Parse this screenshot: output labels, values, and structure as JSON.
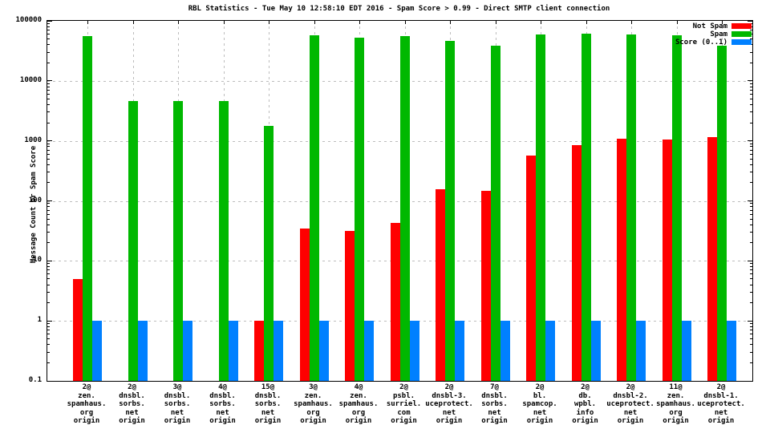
{
  "title": "RBL Statistics - Tue May 10 12:58:10 EDT 2016 - Spam Score > 0.99 - Direct SMTP client connection",
  "y_axis": {
    "label": "Message Count or Spam Score",
    "tick_labels": [
      "100000",
      "10000",
      "1000",
      "100",
      "10",
      "1",
      "0.1"
    ]
  },
  "legend": {
    "position": "top-right-inside",
    "entries": [
      {
        "label": "Not Spam",
        "color": "#ff0000"
      },
      {
        "label": "Spam",
        "color": "#00b800"
      },
      {
        "label": "Score (0..1)",
        "color": "#0080ff"
      }
    ]
  },
  "colors": {
    "not_spam": "#ff0000",
    "spam": "#00b800",
    "score": "#0080ff",
    "grid": "#bdbdbd",
    "border": "#000000",
    "background": "#ffffff"
  },
  "chart_data": {
    "type": "bar",
    "scale": "log",
    "ylim": [
      0.1,
      100000
    ],
    "grid": "on",
    "legend_position": "top-right-inside",
    "title": "RBL Statistics - Tue May 10 12:58:10 EDT 2016 - Spam Score > 0.99 - Direct SMTP client connection",
    "xlabel": "",
    "ylabel": "Message Count or Spam Score",
    "categories": [
      "2@ zen. spamhaus. org origin",
      "2@ dnsbl. sorbs. net origin",
      "3@ dnsbl. sorbs. net origin",
      "4@ dnsbl. sorbs. net origin",
      "15@ dnsbl. sorbs. net origin",
      "3@ zen. spamhaus. org origin",
      "4@ zen. spamhaus. org origin",
      "2@ psbl. surriel. com origin",
      "2@ dnsbl-3. uceprotect. net origin",
      "7@ dnsbl. sorbs. net origin",
      "2@ bl. spamcop. net origin",
      "2@ db. wpbl. info origin",
      "2@ dnsbl-2. uceprotect. net origin",
      "11@ zen. spamhaus. org origin",
      "2@ dnsbl-1. uceprotect. net origin"
    ],
    "category_lines": [
      [
        "2@",
        "zen.",
        "spamhaus.",
        "org",
        "origin"
      ],
      [
        "2@",
        "dnsbl.",
        "sorbs.",
        "net",
        "origin"
      ],
      [
        "3@",
        "dnsbl.",
        "sorbs.",
        "net",
        "origin"
      ],
      [
        "4@",
        "dnsbl.",
        "sorbs.",
        "net",
        "origin"
      ],
      [
        "15@",
        "dnsbl.",
        "sorbs.",
        "net",
        "origin"
      ],
      [
        "3@",
        "zen.",
        "spamhaus.",
        "org",
        "origin"
      ],
      [
        "4@",
        "zen.",
        "spamhaus.",
        "org",
        "origin"
      ],
      [
        "2@",
        "psbl.",
        "surriel.",
        "com",
        "origin"
      ],
      [
        "2@",
        "dnsbl-3.",
        "uceprotect.",
        "net",
        "origin"
      ],
      [
        "7@",
        "dnsbl.",
        "sorbs.",
        "net",
        "origin"
      ],
      [
        "2@",
        "bl.",
        "spamcop.",
        "net",
        "origin"
      ],
      [
        "2@",
        "db.",
        "wpbl.",
        "info",
        "origin"
      ],
      [
        "2@",
        "dnsbl-2.",
        "uceprotect.",
        "net",
        "origin"
      ],
      [
        "11@",
        "zen.",
        "spamhaus.",
        "org",
        "origin"
      ],
      [
        "2@",
        "dnsbl-1.",
        "uceprotect.",
        "net",
        "origin"
      ]
    ],
    "series": [
      {
        "name": "Not Spam",
        "color": "#ff0000",
        "values": [
          5,
          0,
          0,
          0,
          1,
          35,
          32,
          43,
          155,
          145,
          570,
          860,
          1080,
          1050,
          1150
        ]
      },
      {
        "name": "Spam",
        "color": "#00b800",
        "values": [
          56000,
          4600,
          4600,
          4600,
          1750,
          58000,
          53000,
          56000,
          47000,
          38000,
          60000,
          62000,
          60000,
          58000,
          39000
        ]
      },
      {
        "name": "Score (0..1)",
        "color": "#0080ff",
        "values": [
          1,
          1,
          1,
          1,
          1,
          1,
          1,
          1,
          1,
          1,
          1,
          1,
          1,
          1,
          1
        ]
      }
    ]
  }
}
